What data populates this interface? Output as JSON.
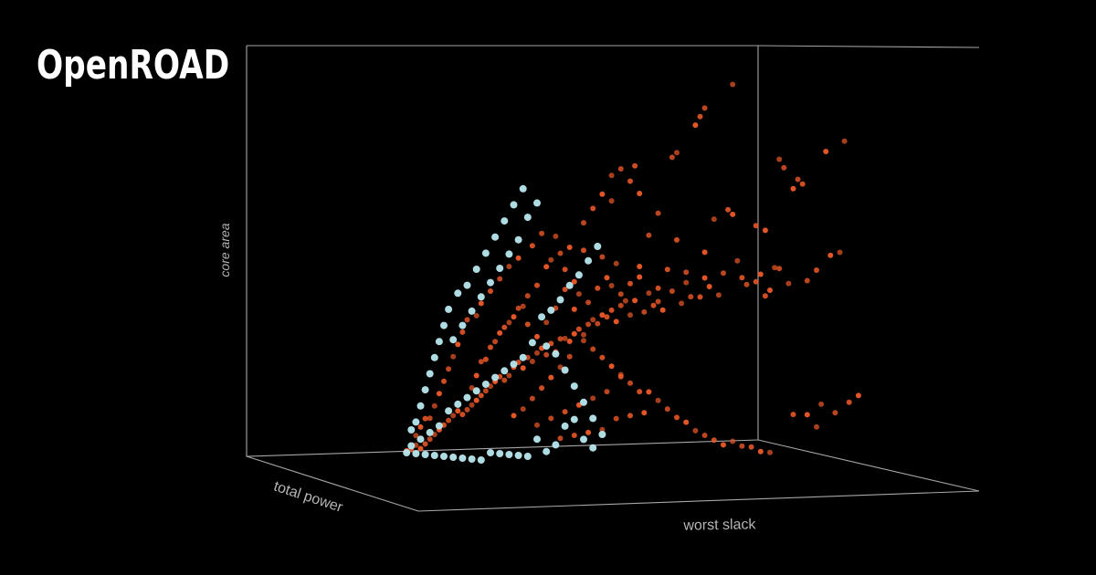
{
  "brand": {
    "title": "OpenROAD"
  },
  "chart_data": {
    "type": "scatter",
    "title": "",
    "xlabel": "worst slack",
    "ylabel": "total power",
    "zlabel": "core area",
    "grid": false,
    "legend": "none",
    "colors": {
      "background": "#000000",
      "axes": "#a6a6a6",
      "label": "#b5b5b5",
      "series_a": "#f05a28",
      "series_b": "#b8e8ef"
    },
    "series": [
      {
        "color": "#f05a28",
        "points": [
          [
            0.72,
            0.97
          ],
          [
            0.66,
            0.91
          ],
          [
            0.65,
            0.89
          ],
          [
            0.64,
            0.87
          ],
          [
            0.6,
            0.8
          ],
          [
            0.59,
            0.79
          ],
          [
            0.51,
            0.77
          ],
          [
            0.92,
            0.81
          ],
          [
            0.96,
            0.84
          ],
          [
            0.86,
            0.72
          ],
          [
            0.87,
            0.71
          ],
          [
            0.85,
            0.7
          ],
          [
            0.82,
            0.78
          ],
          [
            0.83,
            0.76
          ],
          [
            0.77,
            0.61
          ],
          [
            0.79,
            0.6
          ],
          [
            0.46,
            0.68
          ],
          [
            0.56,
            0.65
          ],
          [
            0.71,
            0.64
          ],
          [
            0.72,
            0.63
          ],
          [
            0.68,
            0.62
          ],
          [
            0.54,
            0.58
          ],
          [
            0.6,
            0.57
          ],
          [
            0.66,
            0.54
          ],
          [
            0.73,
            0.52
          ],
          [
            0.7,
            0.49
          ],
          [
            0.74,
            0.48
          ],
          [
            0.78,
            0.47
          ],
          [
            0.81,
            0.49
          ],
          [
            0.82,
            0.49
          ],
          [
            0.79,
            0.42
          ],
          [
            0.66,
            0.47
          ],
          [
            0.62,
            0.46
          ],
          [
            0.59,
            0.44
          ],
          [
            0.56,
            0.45
          ],
          [
            0.51,
            0.42
          ],
          [
            0.49,
            0.4
          ],
          [
            0.48,
            0.39
          ],
          [
            0.46,
            0.38
          ],
          [
            0.44,
            0.37
          ],
          [
            0.42,
            0.36
          ],
          [
            0.41,
            0.35
          ],
          [
            0.39,
            0.34
          ],
          [
            0.38,
            0.33
          ],
          [
            0.36,
            0.32
          ],
          [
            0.35,
            0.3
          ],
          [
            0.33,
            0.29
          ],
          [
            0.31,
            0.28
          ],
          [
            0.3,
            0.27
          ],
          [
            0.28,
            0.26
          ],
          [
            0.26,
            0.25
          ],
          [
            0.25,
            0.24
          ],
          [
            0.24,
            0.22
          ],
          [
            0.23,
            0.21
          ],
          [
            0.22,
            0.2
          ],
          [
            0.21,
            0.19
          ],
          [
            0.2,
            0.18
          ],
          [
            0.19,
            0.17
          ],
          [
            0.18,
            0.16
          ],
          [
            0.17,
            0.15
          ],
          [
            0.16,
            0.14
          ],
          [
            0.15,
            0.13
          ],
          [
            0.14,
            0.12
          ],
          [
            0.13,
            0.11
          ],
          [
            0.12,
            0.1
          ],
          [
            0.11,
            0.09
          ],
          [
            0.1,
            0.08
          ],
          [
            0.09,
            0.07
          ],
          [
            0.08,
            0.06
          ],
          [
            0.07,
            0.05
          ],
          [
            0.06,
            0.04
          ],
          [
            0.05,
            0.03
          ],
          [
            0.04,
            0.02
          ],
          [
            0.03,
            0.01
          ],
          [
            0.02,
            0.01
          ],
          [
            0.27,
            0.23
          ],
          [
            0.29,
            0.25
          ],
          [
            0.32,
            0.27
          ],
          [
            0.34,
            0.28
          ],
          [
            0.37,
            0.31
          ],
          [
            0.4,
            0.33
          ],
          [
            0.43,
            0.34
          ],
          [
            0.45,
            0.36
          ],
          [
            0.47,
            0.35
          ],
          [
            0.5,
            0.37
          ],
          [
            0.53,
            0.38
          ],
          [
            0.55,
            0.4
          ],
          [
            0.57,
            0.39
          ],
          [
            0.61,
            0.41
          ],
          [
            0.63,
            0.43
          ],
          [
            0.65,
            0.41
          ],
          [
            0.67,
            0.44
          ],
          [
            0.69,
            0.42
          ],
          [
            0.75,
            0.45
          ],
          [
            0.77,
            0.46
          ],
          [
            0.8,
            0.44
          ],
          [
            0.84,
            0.46
          ],
          [
            0.88,
            0.47
          ],
          [
            0.9,
            0.5
          ],
          [
            0.93,
            0.52
          ],
          [
            0.95,
            0.53
          ],
          [
            0.62,
            0.48
          ],
          [
            0.58,
            0.49
          ],
          [
            0.52,
            0.5
          ],
          [
            0.47,
            0.51
          ],
          [
            0.44,
            0.53
          ],
          [
            0.4,
            0.55
          ],
          [
            0.37,
            0.56
          ],
          [
            0.34,
            0.57
          ],
          [
            0.31,
            0.58
          ],
          [
            0.29,
            0.55
          ],
          [
            0.26,
            0.52
          ],
          [
            0.24,
            0.5
          ],
          [
            0.22,
            0.47
          ],
          [
            0.2,
            0.44
          ],
          [
            0.18,
            0.41
          ],
          [
            0.17,
            0.38
          ],
          [
            0.15,
            0.35
          ],
          [
            0.14,
            0.32
          ],
          [
            0.13,
            0.29
          ],
          [
            0.12,
            0.26
          ],
          [
            0.11,
            0.23
          ],
          [
            0.1,
            0.2
          ],
          [
            0.09,
            0.17
          ],
          [
            0.08,
            0.14
          ],
          [
            0.07,
            0.11
          ],
          [
            0.06,
            0.09
          ],
          [
            0.05,
            0.07
          ],
          [
            0.04,
            0.05
          ],
          [
            0.21,
            0.3
          ],
          [
            0.23,
            0.34
          ],
          [
            0.25,
            0.37
          ],
          [
            0.27,
            0.4
          ],
          [
            0.28,
            0.43
          ],
          [
            0.3,
            0.46
          ],
          [
            0.32,
            0.49
          ],
          [
            0.33,
            0.51
          ],
          [
            0.35,
            0.53
          ],
          [
            0.36,
            0.49
          ],
          [
            0.38,
            0.46
          ],
          [
            0.39,
            0.43
          ],
          [
            0.41,
            0.41
          ],
          [
            0.43,
            0.45
          ],
          [
            0.45,
            0.48
          ],
          [
            0.46,
            0.44
          ],
          [
            0.48,
            0.42
          ],
          [
            0.5,
            0.45
          ],
          [
            0.52,
            0.47
          ],
          [
            0.54,
            0.43
          ],
          [
            0.56,
            0.41
          ],
          [
            0.19,
            0.26
          ],
          [
            0.17,
            0.22
          ],
          [
            0.16,
            0.19
          ],
          [
            0.18,
            0.24
          ],
          [
            0.2,
            0.28
          ],
          [
            0.22,
            0.32
          ],
          [
            0.24,
            0.35
          ],
          [
            0.26,
            0.39
          ],
          [
            0.28,
            0.35
          ],
          [
            0.3,
            0.32
          ],
          [
            0.32,
            0.36
          ],
          [
            0.34,
            0.4
          ],
          [
            0.36,
            0.43
          ],
          [
            0.38,
            0.38
          ],
          [
            0.4,
            0.3
          ],
          [
            0.42,
            0.28
          ],
          [
            0.44,
            0.26
          ],
          [
            0.46,
            0.24
          ],
          [
            0.48,
            0.22
          ],
          [
            0.5,
            0.2
          ],
          [
            0.52,
            0.18
          ],
          [
            0.54,
            0.16
          ],
          [
            0.56,
            0.14
          ],
          [
            0.58,
            0.12
          ],
          [
            0.6,
            0.1
          ],
          [
            0.62,
            0.09
          ],
          [
            0.64,
            0.07
          ],
          [
            0.66,
            0.06
          ],
          [
            0.68,
            0.05
          ],
          [
            0.7,
            0.04
          ],
          [
            0.72,
            0.03
          ],
          [
            0.74,
            0.02
          ],
          [
            0.76,
            0.02
          ],
          [
            0.78,
            0.01
          ],
          [
            0.8,
            0.01
          ],
          [
            0.35,
            0.05
          ],
          [
            0.38,
            0.06
          ],
          [
            0.41,
            0.07
          ],
          [
            0.44,
            0.08
          ],
          [
            0.47,
            0.09
          ],
          [
            0.5,
            0.1
          ],
          [
            0.53,
            0.11
          ],
          [
            0.3,
            0.08
          ],
          [
            0.33,
            0.1
          ],
          [
            0.36,
            0.12
          ],
          [
            0.39,
            0.14
          ],
          [
            0.42,
            0.16
          ],
          [
            0.45,
            0.18
          ],
          [
            0.48,
            0.2
          ],
          [
            0.25,
            0.1
          ],
          [
            0.27,
            0.12
          ],
          [
            0.29,
            0.15
          ],
          [
            0.31,
            0.18
          ],
          [
            0.33,
            0.21
          ],
          [
            0.35,
            0.24
          ],
          [
            0.37,
            0.27
          ],
          [
            0.85,
            0.12
          ],
          [
            0.88,
            0.1
          ],
          [
            0.91,
            0.13
          ],
          [
            0.94,
            0.11
          ],
          [
            0.97,
            0.14
          ],
          [
            0.99,
            0.16
          ],
          [
            0.9,
            0.08
          ],
          [
            0.4,
            0.62
          ],
          [
            0.42,
            0.66
          ],
          [
            0.44,
            0.7
          ],
          [
            0.46,
            0.73
          ],
          [
            0.48,
            0.75
          ],
          [
            0.5,
            0.72
          ],
          [
            0.52,
            0.69
          ]
        ]
      },
      {
        "color": "#b8e8ef",
        "points": [
          [
            0.02,
            0.0
          ],
          [
            0.04,
            0.0
          ],
          [
            0.06,
            0.0
          ],
          [
            0.08,
            0.0
          ],
          [
            0.1,
            0.0
          ],
          [
            0.12,
            0.0
          ],
          [
            0.14,
            0.0
          ],
          [
            0.16,
            0.0
          ],
          [
            0.18,
            0.0
          ],
          [
            0.2,
            0.0
          ],
          [
            0.22,
            0.0
          ],
          [
            0.24,
            0.0
          ],
          [
            0.26,
            0.0
          ],
          [
            0.28,
            0.0
          ],
          [
            0.03,
            0.03
          ],
          [
            0.05,
            0.05
          ],
          [
            0.07,
            0.07
          ],
          [
            0.09,
            0.09
          ],
          [
            0.11,
            0.11
          ],
          [
            0.13,
            0.13
          ],
          [
            0.15,
            0.15
          ],
          [
            0.17,
            0.17
          ],
          [
            0.19,
            0.19
          ],
          [
            0.21,
            0.21
          ],
          [
            0.23,
            0.23
          ],
          [
            0.25,
            0.25
          ],
          [
            0.27,
            0.27
          ],
          [
            0.29,
            0.29
          ],
          [
            0.12,
            0.3
          ],
          [
            0.14,
            0.34
          ],
          [
            0.16,
            0.38
          ],
          [
            0.18,
            0.42
          ],
          [
            0.2,
            0.46
          ],
          [
            0.22,
            0.5
          ],
          [
            0.24,
            0.54
          ],
          [
            0.26,
            0.58
          ],
          [
            0.28,
            0.62
          ],
          [
            0.3,
            0.66
          ],
          [
            0.27,
            0.7
          ],
          [
            0.25,
            0.66
          ],
          [
            0.23,
            0.62
          ],
          [
            0.21,
            0.58
          ],
          [
            0.19,
            0.54
          ],
          [
            0.17,
            0.5
          ],
          [
            0.15,
            0.46
          ],
          [
            0.13,
            0.42
          ],
          [
            0.11,
            0.38
          ],
          [
            0.1,
            0.34
          ],
          [
            0.09,
            0.3
          ],
          [
            0.08,
            0.26
          ],
          [
            0.07,
            0.22
          ],
          [
            0.06,
            0.18
          ],
          [
            0.05,
            0.14
          ],
          [
            0.04,
            0.1
          ],
          [
            0.03,
            0.06
          ],
          [
            0.31,
            0.36
          ],
          [
            0.33,
            0.38
          ],
          [
            0.35,
            0.41
          ],
          [
            0.37,
            0.45
          ],
          [
            0.39,
            0.48
          ],
          [
            0.41,
            0.52
          ],
          [
            0.43,
            0.56
          ],
          [
            0.32,
            0.3
          ],
          [
            0.34,
            0.26
          ],
          [
            0.36,
            0.22
          ],
          [
            0.38,
            0.18
          ],
          [
            0.4,
            0.14
          ],
          [
            0.42,
            0.1
          ],
          [
            0.44,
            0.06
          ],
          [
            0.3,
            0.05
          ],
          [
            0.32,
            0.02
          ],
          [
            0.34,
            0.04
          ],
          [
            0.36,
            0.07
          ],
          [
            0.38,
            0.09
          ],
          [
            0.4,
            0.04
          ],
          [
            0.42,
            0.02
          ]
        ]
      }
    ]
  }
}
